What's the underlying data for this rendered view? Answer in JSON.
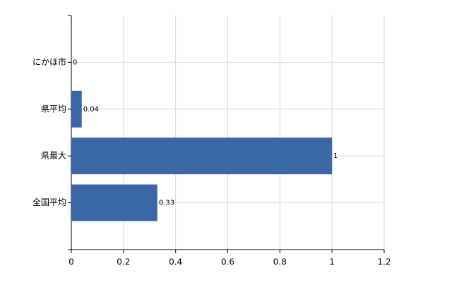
{
  "chart_data": {
    "type": "bar",
    "orientation": "horizontal",
    "categories": [
      "にかほ市",
      "県平均",
      "県最大",
      "全国平均"
    ],
    "values": [
      0,
      0.04,
      1,
      0.33
    ],
    "color": "#3a67a5",
    "xlim": [
      0,
      1.2
    ],
    "xticks": [
      0,
      0.2,
      0.4,
      0.6,
      0.8,
      1,
      1.2
    ],
    "grid": true
  }
}
